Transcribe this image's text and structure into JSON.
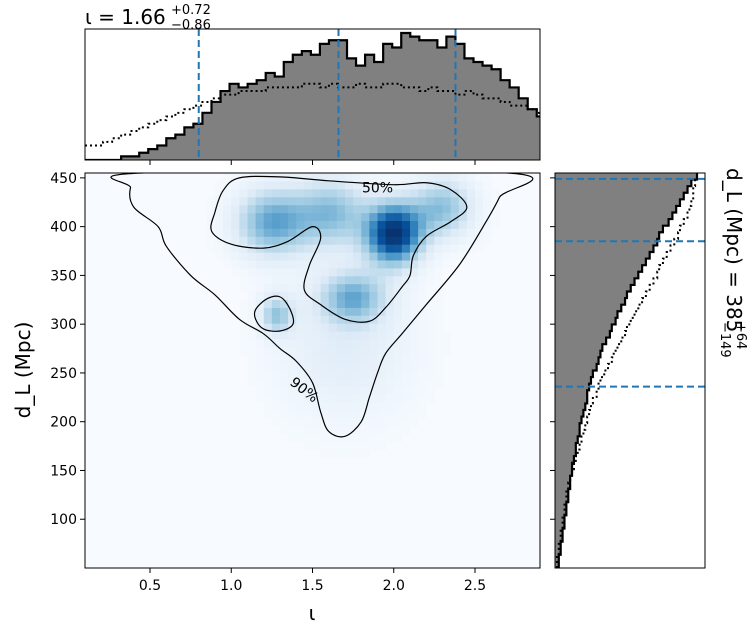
{
  "chart_data": [
    {
      "type": "area",
      "panel": "top-marginal-histogram",
      "title": "ι = 1.66",
      "title_sup": "+0.72",
      "title_sub": "−0.86",
      "xlim": [
        0.1,
        2.9
      ],
      "x_edges_start": 0.1,
      "bin_width": 0.0556,
      "histogram_counts": [
        0,
        0,
        0,
        0,
        1,
        1,
        2,
        3,
        4,
        6,
        7,
        9,
        10,
        13,
        16,
        19,
        21,
        20,
        21,
        22,
        24,
        23,
        27,
        29,
        30,
        29,
        32,
        33,
        33,
        28,
        26,
        29,
        27,
        32,
        31,
        35,
        34,
        33,
        33,
        31,
        34,
        32,
        28,
        27,
        26,
        25,
        22,
        20,
        17,
        14,
        12,
        9,
        7,
        5,
        4,
        3,
        2,
        1,
        0,
        0
      ],
      "prior_counts": [
        4,
        4,
        5,
        6,
        7,
        8,
        9,
        10,
        11,
        12,
        13,
        14,
        15,
        16,
        17,
        18,
        18,
        19,
        19,
        19,
        20,
        20,
        20,
        20,
        21,
        21,
        20,
        21,
        20,
        20,
        21,
        20,
        20,
        21,
        21,
        20,
        20,
        19,
        20,
        19,
        19,
        18,
        19,
        18,
        17,
        17,
        16,
        15,
        15,
        14,
        13,
        12,
        11,
        10,
        9,
        8,
        7,
        6,
        5,
        4
      ],
      "median": 1.66,
      "lower_bound": 0.8,
      "upper_bound": 2.38,
      "colors": {
        "fill": "#808080",
        "edge": "#000000",
        "bounds": "#1f77b4"
      }
    },
    {
      "type": "heatmap",
      "panel": "joint-density",
      "xlabel": "ι",
      "ylabel": "d_L (Mpc)",
      "xlim": [
        0.1,
        2.9
      ],
      "ylim": [
        50,
        455
      ],
      "xticks": [
        "0.5",
        "1.0",
        "1.5",
        "2.0",
        "2.5"
      ],
      "xtick_values": [
        0.5,
        1.0,
        1.5,
        2.0,
        2.5
      ],
      "yticks": [
        "100",
        "150",
        "200",
        "250",
        "300",
        "350",
        "400",
        "450"
      ],
      "ytick_values": [
        100,
        150,
        200,
        250,
        300,
        350,
        400,
        450
      ],
      "density_peaks": [
        {
          "x": 2.0,
          "y": 393,
          "amplitude": 1.0,
          "sx": 0.12,
          "sy": 22
        },
        {
          "x": 1.25,
          "y": 405,
          "amplitude": 0.55,
          "sx": 0.16,
          "sy": 25
        },
        {
          "x": 1.62,
          "y": 415,
          "amplitude": 0.45,
          "sx": 0.16,
          "sy": 25
        },
        {
          "x": 2.3,
          "y": 420,
          "amplitude": 0.45,
          "sx": 0.14,
          "sy": 22
        },
        {
          "x": 1.75,
          "y": 328,
          "amplitude": 0.45,
          "sx": 0.14,
          "sy": 18
        },
        {
          "x": 1.28,
          "y": 310,
          "amplitude": 0.4,
          "sx": 0.07,
          "sy": 14
        },
        {
          "x": 1.7,
          "y": 280,
          "amplitude": 0.18,
          "sx": 0.3,
          "sy": 55
        }
      ],
      "contours": [
        {
          "label": "90%",
          "label_at": [
            1.45,
            233
          ],
          "points": [
            [
              0.38,
              440
            ],
            [
              0.4,
              420
            ],
            [
              0.55,
              400
            ],
            [
              0.6,
              380
            ],
            [
              0.75,
              350
            ],
            [
              0.9,
              330
            ],
            [
              1.05,
              305
            ],
            [
              1.2,
              290
            ],
            [
              1.3,
              275
            ],
            [
              1.4,
              262
            ],
            [
              1.5,
              240
            ],
            [
              1.55,
              210
            ],
            [
              1.6,
              190
            ],
            [
              1.7,
              185
            ],
            [
              1.8,
              200
            ],
            [
              1.85,
              225
            ],
            [
              1.9,
              250
            ],
            [
              1.95,
              270
            ],
            [
              2.05,
              290
            ],
            [
              2.2,
              320
            ],
            [
              2.4,
              360
            ],
            [
              2.55,
              400
            ],
            [
              2.65,
              430
            ],
            [
              2.7,
              455
            ],
            [
              0.45,
              455
            ]
          ]
        },
        {
          "label": "50%",
          "label_at": [
            1.9,
            440
          ],
          "points": [
            [
              0.95,
              437
            ],
            [
              1.05,
              450
            ],
            [
              1.3,
              451
            ],
            [
              1.6,
              447
            ],
            [
              2.0,
              443
            ],
            [
              2.2,
              445
            ],
            [
              2.35,
              438
            ],
            [
              2.45,
              420
            ],
            [
              2.35,
              405
            ],
            [
              2.2,
              390
            ],
            [
              2.12,
              370
            ],
            [
              2.1,
              350
            ],
            [
              2.05,
              338
            ],
            [
              1.95,
              317
            ],
            [
              1.85,
              303
            ],
            [
              1.7,
              305
            ],
            [
              1.55,
              320
            ],
            [
              1.45,
              335
            ],
            [
              1.48,
              360
            ],
            [
              1.55,
              388
            ],
            [
              1.5,
              400
            ],
            [
              1.35,
              385
            ],
            [
              1.2,
              378
            ],
            [
              1.0,
              382
            ],
            [
              0.88,
              395
            ],
            [
              0.9,
              415
            ]
          ]
        },
        {
          "label": "",
          "points": [
            [
              1.15,
              315
            ],
            [
              1.22,
              326
            ],
            [
              1.3,
              328
            ],
            [
              1.36,
              316
            ],
            [
              1.38,
              300
            ],
            [
              1.3,
              293
            ],
            [
              1.2,
              295
            ],
            [
              1.15,
              305
            ]
          ]
        }
      ],
      "contour_labels": [
        "50%",
        "90%"
      ]
    },
    {
      "type": "area",
      "panel": "right-marginal-histogram",
      "title": "d_L (Mpc) = 385",
      "title_sup": "+64",
      "title_sub": "−149",
      "ylim": [
        50,
        455
      ],
      "y_edges_start": 50,
      "bin_width": 6.75,
      "histogram_counts": [
        2,
        2,
        3,
        3,
        4,
        4,
        5,
        5,
        6,
        6,
        7,
        7,
        8,
        8,
        9,
        9,
        10,
        11,
        11,
        12,
        13,
        13,
        14,
        15,
        16,
        17,
        17,
        18,
        19,
        20,
        22,
        23,
        24,
        25,
        27,
        29,
        30,
        32,
        33,
        35,
        37,
        38,
        40,
        42,
        44,
        46,
        48,
        50,
        52,
        54,
        55,
        57,
        60,
        62,
        64,
        66,
        68,
        70,
        72,
        75
      ],
      "prior_counts": [
        1,
        1,
        2,
        2,
        3,
        3,
        4,
        4,
        5,
        5,
        6,
        6,
        7,
        8,
        9,
        10,
        11,
        12,
        13,
        14,
        15,
        16,
        17,
        18,
        19,
        20,
        22,
        23,
        24,
        26,
        28,
        30,
        31,
        33,
        35,
        37,
        38,
        40,
        42,
        44,
        46,
        48,
        50,
        52,
        54,
        55,
        57,
        59,
        61,
        63,
        65,
        66,
        68,
        70,
        71,
        72,
        73,
        73,
        74,
        75
      ],
      "median": 385,
      "lower_bound": 236,
      "upper_bound": 449,
      "colors": {
        "fill": "#808080",
        "edge": "#000000",
        "bounds": "#1f77b4"
      }
    }
  ]
}
